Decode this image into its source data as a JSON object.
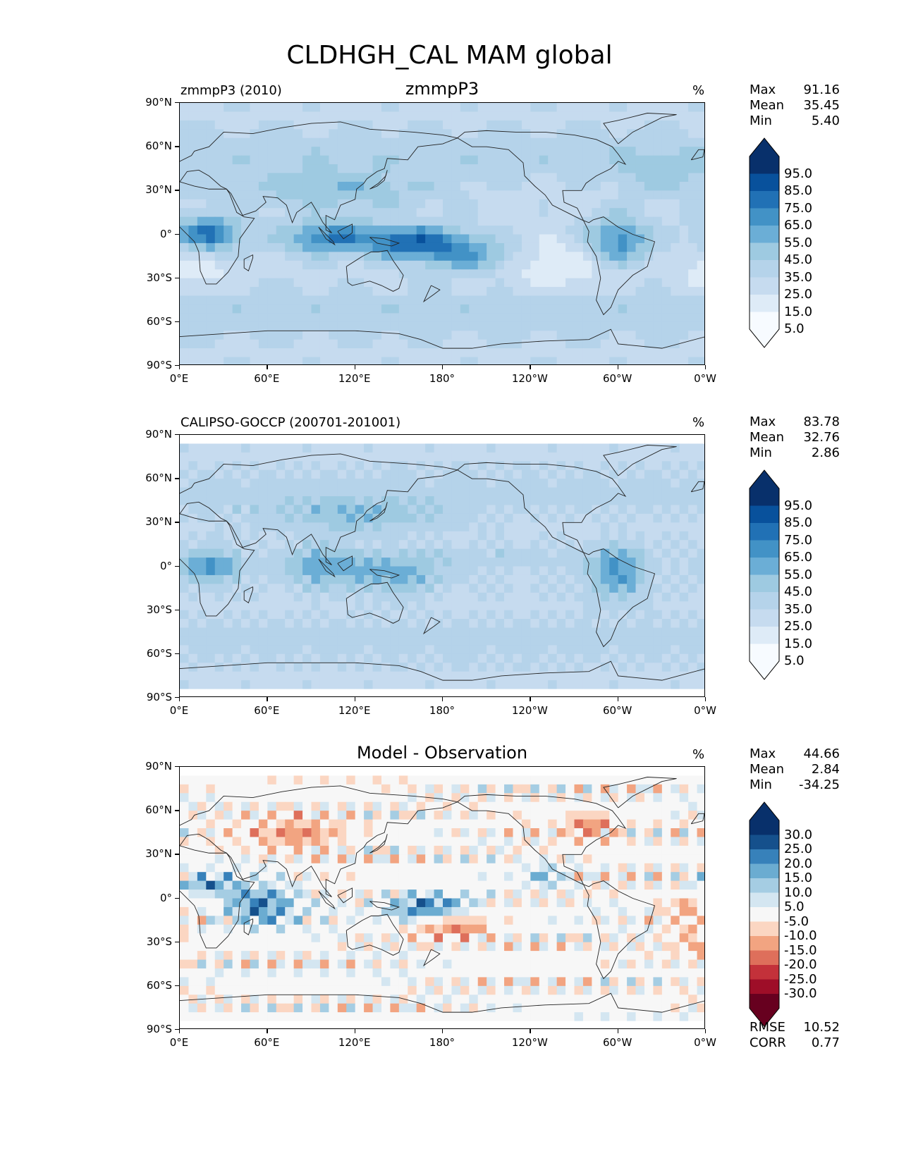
{
  "suptitle": "CLDHGH_CAL MAM global",
  "colors": {
    "seq": [
      "#f7fbff",
      "#deebf7",
      "#c6dbef",
      "#b5d3ea",
      "#9ecae1",
      "#6baed6",
      "#4292c6",
      "#2171b5",
      "#08519c",
      "#08306b"
    ],
    "div": [
      "#67001f",
      "#9e0e28",
      "#c3313a",
      "#de6f5b",
      "#f2a481",
      "#fbd6c2",
      "#f7f7f7",
      "#d4e6f1",
      "#a5cde3",
      "#6bacd1",
      "#3781ba",
      "#15508c",
      "#08306b"
    ]
  },
  "axes": {
    "lat_ticks": [
      "90°N",
      "60°N",
      "30°N",
      "0°",
      "30°S",
      "60°S",
      "90°S"
    ],
    "lon_ticks": [
      "0°E",
      "60°E",
      "120°E",
      "180°",
      "120°W",
      "60°W",
      "0°W"
    ]
  },
  "chart_data": [
    {
      "type": "heatmap",
      "left_label": "zmmpP3 (2010)",
      "title": "zmmpP3",
      "unit": "%",
      "stats": [
        {
          "label": "Max",
          "value": "91.16"
        },
        {
          "label": "Mean",
          "value": "35.45"
        },
        {
          "label": "Min",
          "value": "5.40"
        }
      ],
      "colorbar": {
        "levels": [
          "95.0",
          "85.0",
          "75.0",
          "65.0",
          "55.0",
          "45.0",
          "35.0",
          "25.0",
          "15.0",
          "5.0"
        ],
        "palette": "seq",
        "extend": "both"
      },
      "field": "model"
    },
    {
      "type": "heatmap",
      "left_label": "CALIPSO-GOCCP (200701-201001)",
      "title": "",
      "unit": "%",
      "stats": [
        {
          "label": "Max",
          "value": "83.78"
        },
        {
          "label": "Mean",
          "value": "32.76"
        },
        {
          "label": "Min",
          "value": "2.86"
        }
      ],
      "colorbar": {
        "levels": [
          "95.0",
          "85.0",
          "75.0",
          "65.0",
          "55.0",
          "45.0",
          "35.0",
          "25.0",
          "15.0",
          "5.0"
        ],
        "palette": "seq",
        "extend": "both"
      },
      "field": "obs"
    },
    {
      "type": "heatmap",
      "left_label": "",
      "title": "Model - Observation",
      "unit": "%",
      "stats": [
        {
          "label": "Max",
          "value": "44.66"
        },
        {
          "label": "Mean",
          "value": "2.84"
        },
        {
          "label": "Min",
          "value": "-34.25"
        }
      ],
      "colorbar": {
        "levels": [
          "30.0",
          "25.0",
          "20.0",
          "15.0",
          "10.0",
          "5.0",
          "-5.0",
          "-10.0",
          "-15.0",
          "-20.0",
          "-25.0",
          "-30.0"
        ],
        "palette": "div",
        "extend": "both"
      },
      "metrics": [
        {
          "label": "RMSE",
          "value": "10.52"
        },
        {
          "label": "CORR",
          "value": "0.77"
        }
      ],
      "field": "diff"
    }
  ]
}
